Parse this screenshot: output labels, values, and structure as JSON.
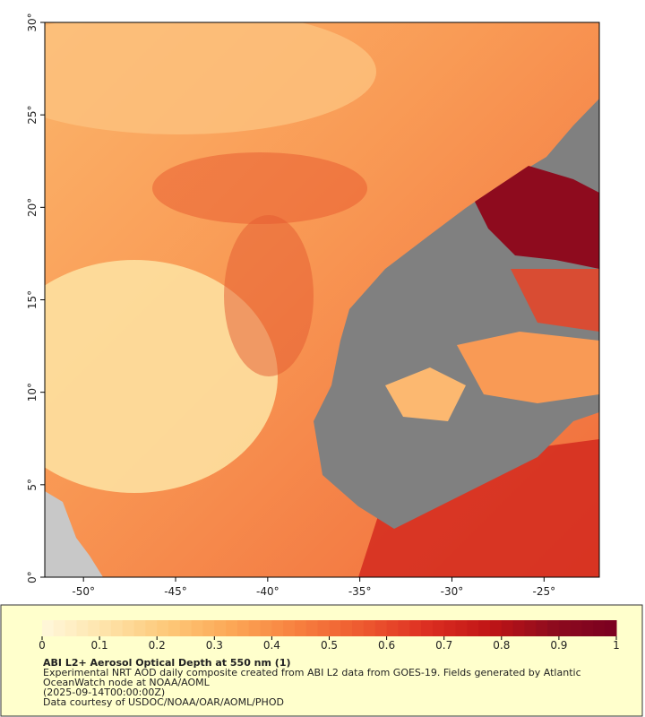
{
  "map": {
    "xlim": [
      -52.1,
      -22
    ],
    "ylim": [
      0,
      30
    ],
    "xticks": [
      {
        "value": -50,
        "label": "-50°"
      },
      {
        "value": -45,
        "label": "-45°"
      },
      {
        "value": -40,
        "label": "-40°"
      },
      {
        "value": -35,
        "label": "-35°"
      },
      {
        "value": -30,
        "label": "-30°"
      },
      {
        "value": -25,
        "label": "-25°"
      }
    ],
    "yticks": [
      {
        "value": 0,
        "label": "0°"
      },
      {
        "value": 5,
        "label": "5°"
      },
      {
        "value": 10,
        "label": "10°"
      },
      {
        "value": 15,
        "label": "15°"
      },
      {
        "value": 20,
        "label": "20°"
      },
      {
        "value": 25,
        "label": "25°"
      },
      {
        "value": 30,
        "label": "30°"
      }
    ]
  },
  "colorbar": {
    "lim": [
      0,
      1
    ],
    "ticks": [
      0,
      0.1,
      0.2,
      0.3,
      0.4,
      0.5,
      0.6,
      0.7,
      0.8,
      0.9,
      1
    ],
    "colors": [
      "#fff8dc",
      "#fee3a8",
      "#fdc777",
      "#fca655",
      "#f7803f",
      "#ee5a30",
      "#dd3022",
      "#c11516",
      "#8e0b1e",
      "#7a0020"
    ]
  },
  "caption": {
    "title": "ABI L2+ Aerosol Optical Depth at 550 nm (1)",
    "lines": [
      "Experimental NRT AOD daily composite created from ABI L2 data from GOES-19. Fields generated by Atlantic",
      "OceanWatch node at NOAA/AOML",
      "(2025-09-14T00:00:00Z)",
      "Data courtesy of USDOC/NOAA/OAR/AOML/PHOD"
    ]
  }
}
